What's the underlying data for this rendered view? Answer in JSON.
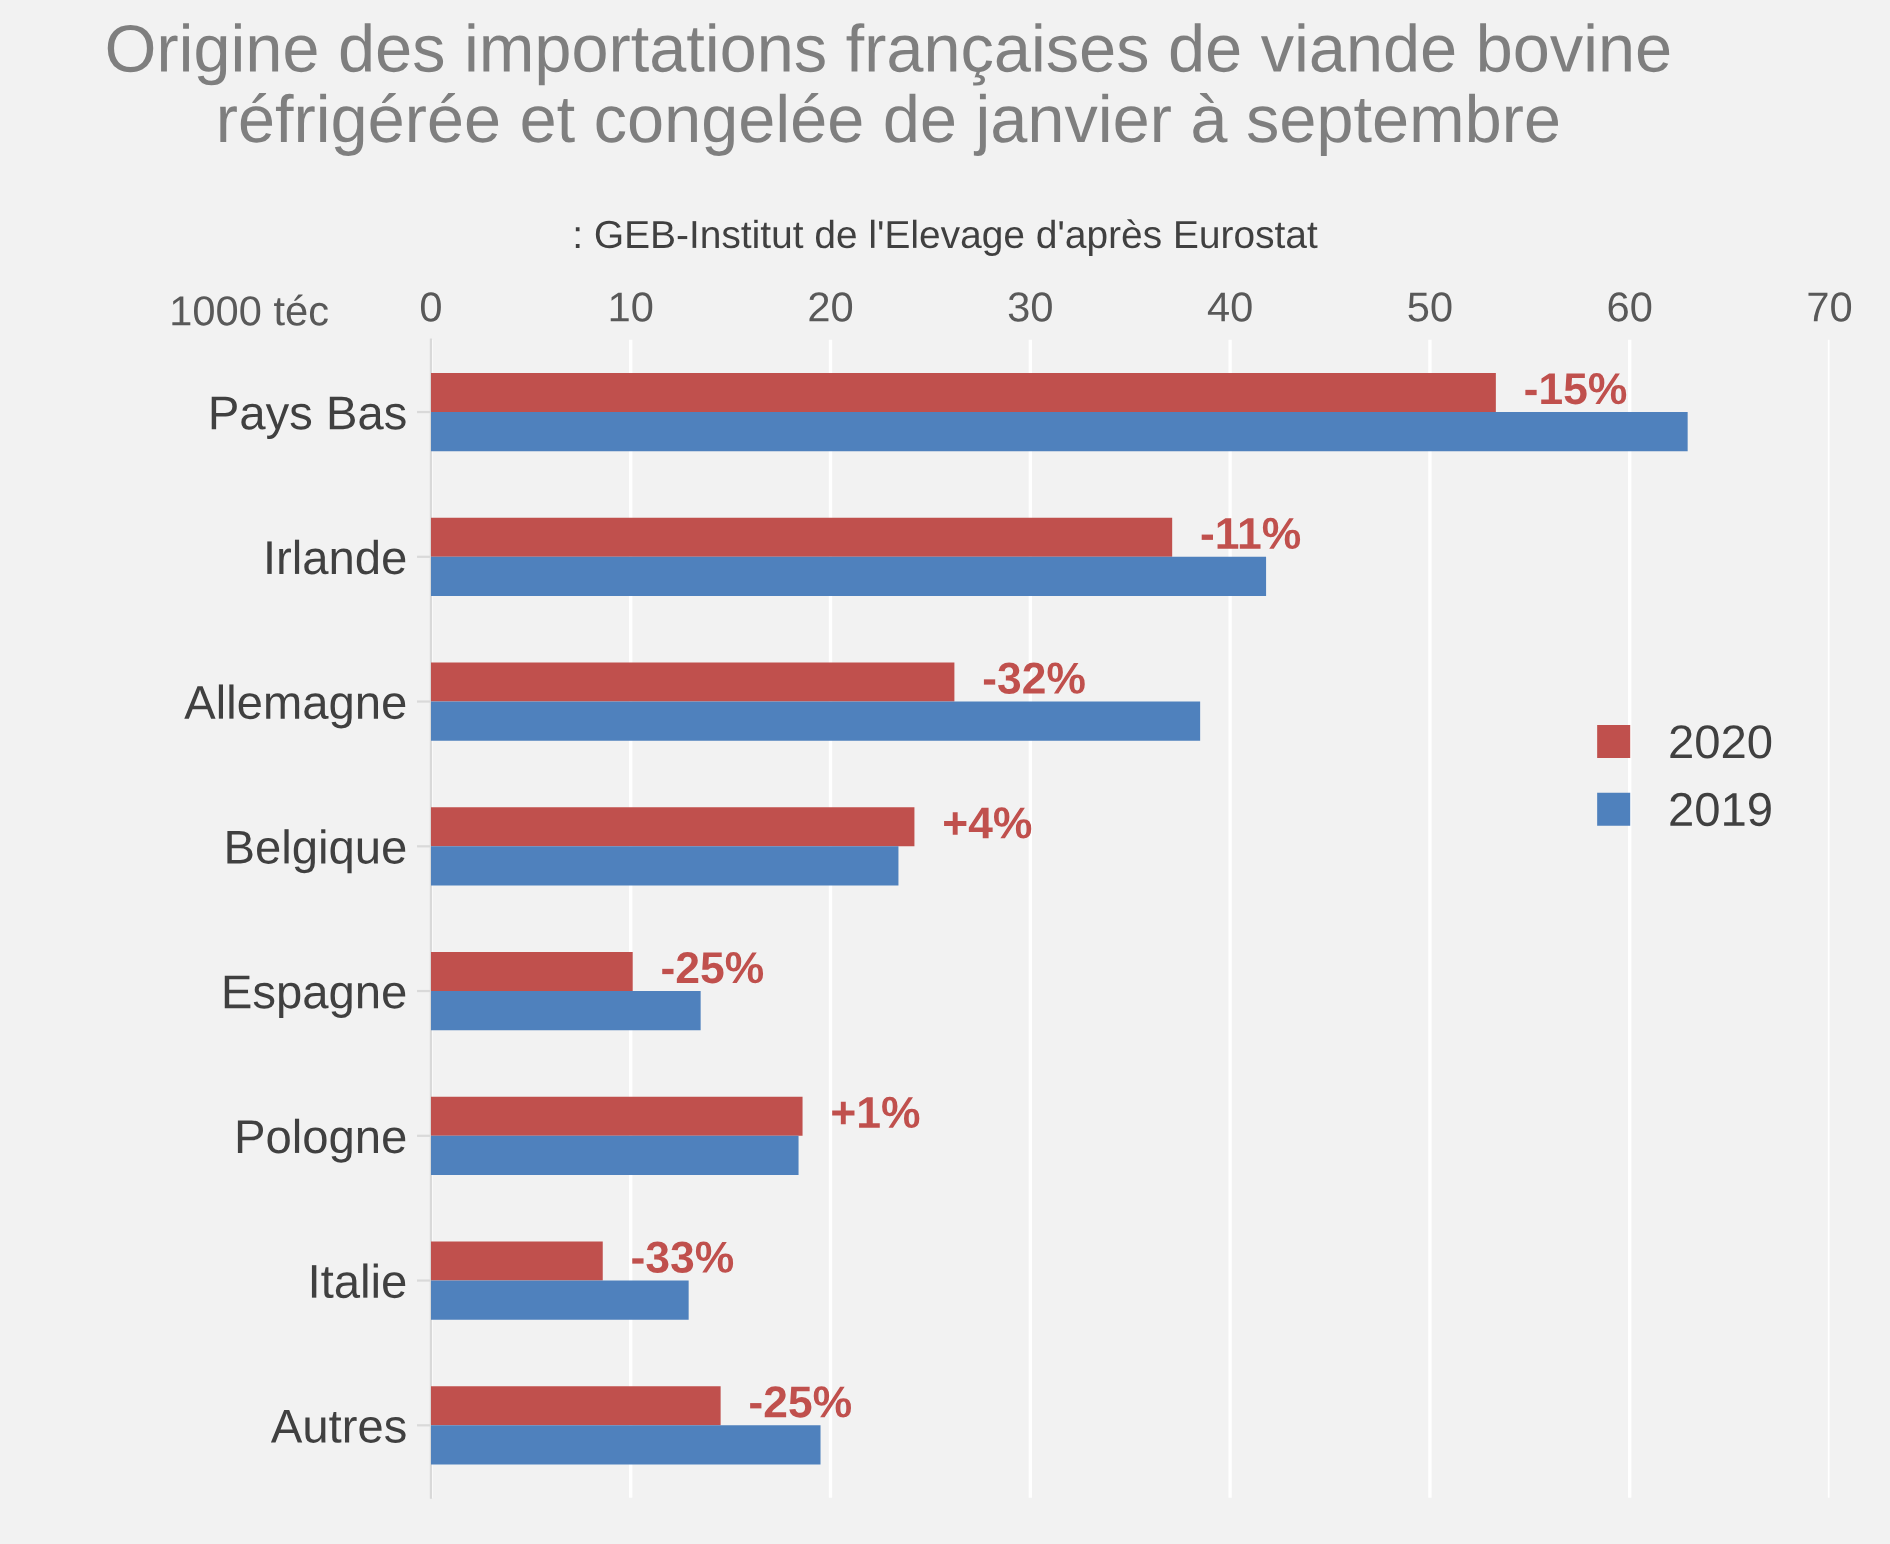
{
  "chart_data": {
    "type": "bar",
    "orientation": "horizontal",
    "title": "Origine des importations françaises de viande bovine réfrigérée et congelée de janvier à septembre",
    "annotations": [
      ": GEB-Institut de l'Elevage d'après Eurostat",
      {
        "text": "-15%",
        "x": 53.3,
        "y": "Pays Bas"
      },
      {
        "text": "-11%",
        "x": 37.1,
        "y": "Irlande"
      },
      {
        "text": "-32%",
        "x": 26.2,
        "y": "Allemagne"
      },
      {
        "text": "+4%",
        "x": 24.2,
        "y": "Belgique"
      },
      {
        "text": "-25%",
        "x": 10.1,
        "y": "Espagne"
      },
      {
        "text": "+1%",
        "x": 18.6,
        "y": "Pologne"
      },
      {
        "text": "-33%",
        "x": 8.6,
        "y": "Italie"
      },
      {
        "text": "-25%",
        "x": 14.5,
        "y": "Autres"
      }
    ],
    "xlabel": "1000 téc",
    "categories": [
      "Pays Bas",
      "Irlande",
      "Allemagne",
      "Belgique",
      "Espagne",
      "Pologne",
      "Italie",
      "Autres"
    ],
    "series": [
      {
        "name": "2020",
        "color": "#c0504d",
        "values": [
          53.3,
          37.1,
          26.2,
          24.2,
          10.1,
          18.6,
          8.6,
          14.5
        ]
      },
      {
        "name": "2019",
        "color": "#4f81bd",
        "values": [
          62.9,
          41.8,
          38.5,
          23.4,
          13.5,
          18.4,
          12.9,
          19.5
        ]
      }
    ],
    "xlim": [
      0,
      70
    ],
    "xticks": [
      0,
      10,
      20,
      30,
      40,
      50,
      60,
      70
    ],
    "grid": "x",
    "legend": "right"
  }
}
